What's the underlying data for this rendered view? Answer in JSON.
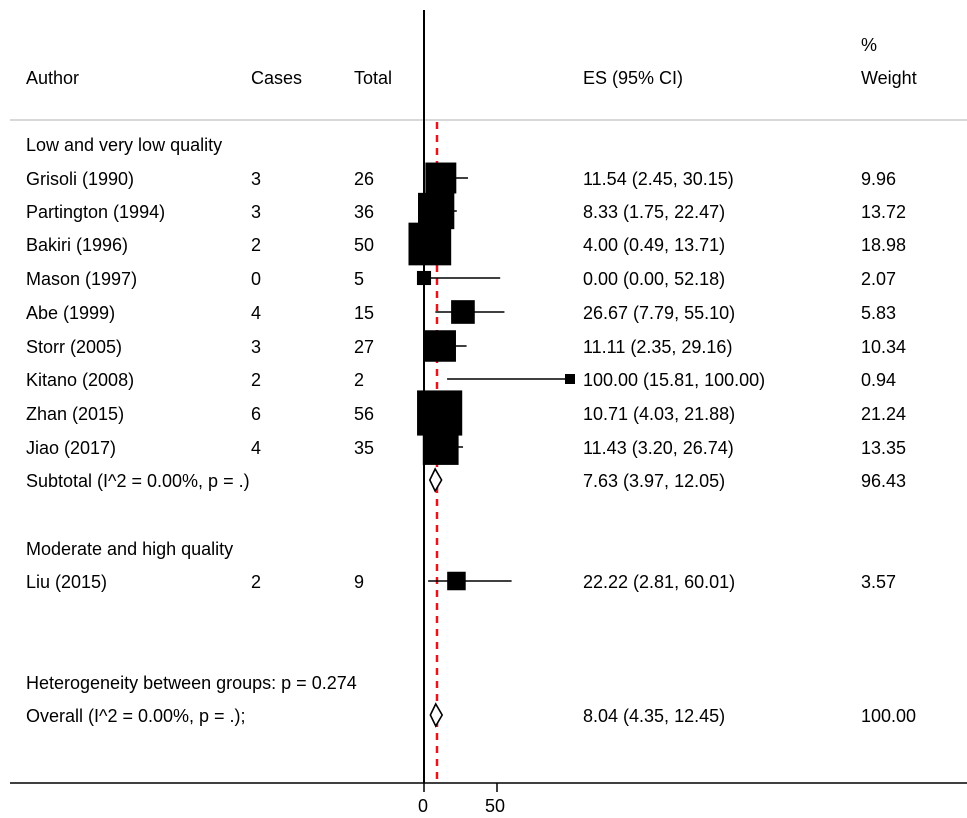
{
  "headers": {
    "author": "Author",
    "cases": "Cases",
    "total": "Total",
    "es": "ES (95% CI)",
    "weight_top": "%",
    "weight_bottom": "Weight"
  },
  "groups": [
    {
      "label": "Low and very low quality",
      "studies": [
        {
          "author": "Grisoli (1990)",
          "cases": "3",
          "total": "26",
          "es_text": "11.54 (2.45, 30.15)",
          "weight": "9.96"
        },
        {
          "author": "Partington  (1994)",
          "cases": "3",
          "total": "36",
          "es_text": "8.33 (1.75, 22.47)",
          "weight": "13.72"
        },
        {
          "author": "Bakiri (1996)",
          "cases": "2",
          "total": "50",
          "es_text": "4.00 (0.49, 13.71)",
          "weight": "18.98"
        },
        {
          "author": "Mason (1997)",
          "cases": "0",
          "total": "5",
          "es_text": "0.00 (0.00, 52.18)",
          "weight": "2.07"
        },
        {
          "author": "Abe (1999)",
          "cases": "4",
          "total": "15",
          "es_text": "26.67 (7.79, 55.10)",
          "weight": "5.83"
        },
        {
          "author": "Storr (2005)",
          "cases": "3",
          "total": "27",
          "es_text": "11.11 (2.35, 29.16)",
          "weight": "10.34"
        },
        {
          "author": "Kitano (2008)",
          "cases": "2",
          "total": "2",
          "es_text": "100.00 (15.81, 100.00)",
          "weight": "0.94"
        },
        {
          "author": "Zhan (2015)",
          "cases": "6",
          "total": "56",
          "es_text": "10.71 (4.03, 21.88)",
          "weight": "21.24"
        },
        {
          "author": "Jiao (2017)",
          "cases": "4",
          "total": "35",
          "es_text": "11.43 (3.20, 26.74)",
          "weight": "13.35"
        }
      ],
      "subtotal": {
        "label": "Subtotal  (I^2 = 0.00%, p = .)",
        "es_text": "7.63 (3.97, 12.05)",
        "weight": "96.43"
      }
    },
    {
      "label": "Moderate and high quality",
      "studies": [
        {
          "author": "Liu (2015)",
          "cases": "2",
          "total": "9",
          "es_text": "22.22 (2.81, 60.01)",
          "weight": "3.57"
        }
      ]
    }
  ],
  "heterogeneity": "Heterogeneity between groups: p = 0.274",
  "overall": {
    "label": "Overall  (I^2 = 0.00%, p = .);",
    "es_text": "8.04 (4.35, 12.45)",
    "weight": "100.00"
  },
  "chart_data": {
    "type": "forest",
    "x_ticks": [
      0,
      50
    ],
    "null_line": 0,
    "overall_line": 8.04,
    "colors": {
      "marker": "#000000",
      "overall_line": "#e8141b",
      "axis": "#000000",
      "rule": "#cccccc"
    },
    "series": [
      {
        "name": "Grisoli (1990)",
        "es": 11.54,
        "lo": 2.45,
        "hi": 30.15,
        "weight": 9.96
      },
      {
        "name": "Partington  (1994)",
        "es": 8.33,
        "lo": 1.75,
        "hi": 22.47,
        "weight": 13.72
      },
      {
        "name": "Bakiri (1996)",
        "es": 4.0,
        "lo": 0.49,
        "hi": 13.71,
        "weight": 18.98
      },
      {
        "name": "Mason (1997)",
        "es": 0.0,
        "lo": 0.0,
        "hi": 52.18,
        "weight": 2.07
      },
      {
        "name": "Abe (1999)",
        "es": 26.67,
        "lo": 7.79,
        "hi": 55.1,
        "weight": 5.83
      },
      {
        "name": "Storr (2005)",
        "es": 11.11,
        "lo": 2.35,
        "hi": 29.16,
        "weight": 10.34
      },
      {
        "name": "Kitano (2008)",
        "es": 100.0,
        "lo": 15.81,
        "hi": 100.0,
        "weight": 0.94
      },
      {
        "name": "Zhan (2015)",
        "es": 10.71,
        "lo": 4.03,
        "hi": 21.88,
        "weight": 21.24
      },
      {
        "name": "Jiao (2017)",
        "es": 11.43,
        "lo": 3.2,
        "hi": 26.74,
        "weight": 13.35
      },
      {
        "name": "Subtotal  (I^2 = 0.00%, p = .)",
        "es": 7.63,
        "lo": 3.97,
        "hi": 12.05,
        "weight": 96.43,
        "diamond": true
      },
      {
        "name": "Liu (2015)",
        "es": 22.22,
        "lo": 2.81,
        "hi": 60.01,
        "weight": 3.57
      },
      {
        "name": "Overall  (I^2 = 0.00%, p = .);",
        "es": 8.04,
        "lo": 4.35,
        "hi": 12.45,
        "weight": 100.0,
        "diamond": true
      }
    ]
  }
}
